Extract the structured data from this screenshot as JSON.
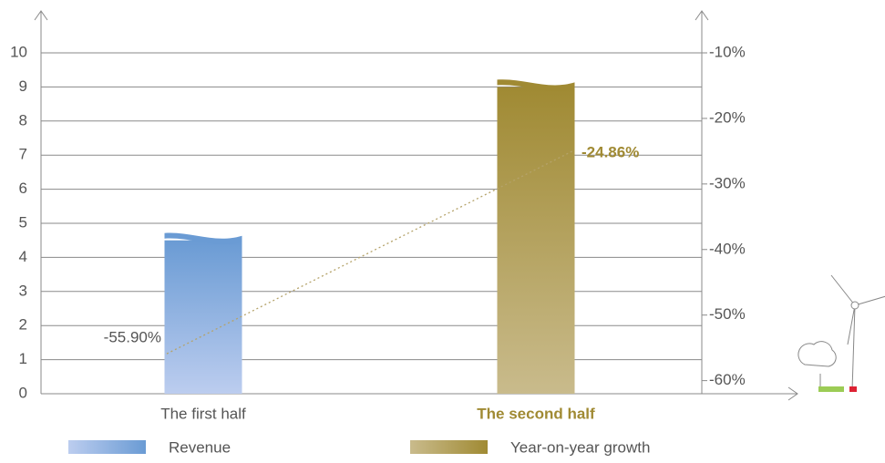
{
  "chart_data": {
    "type": "bar",
    "categories": [
      "The first half",
      "The second half"
    ],
    "series": [
      {
        "name": "Revenue",
        "type": "bar",
        "color": "#6a9bd4",
        "values": [
          4.5,
          9.0
        ]
      },
      {
        "name": "Year-on-year growth",
        "type": "line",
        "axis": "y2",
        "color": "#a08a33",
        "values": [
          -55.9,
          -24.86
        ],
        "value_labels": [
          "-55.90%",
          "-24.86%"
        ]
      }
    ],
    "ylim": [
      0,
      10
    ],
    "yticks": [
      0,
      1,
      2,
      3,
      4,
      5,
      6,
      7,
      8,
      9,
      10
    ],
    "y2lim": [
      -62,
      -10
    ],
    "y2ticks": [
      {
        "value": -10,
        "label": "-10%"
      },
      {
        "value": -20,
        "label": "-20%"
      },
      {
        "value": -30,
        "label": "-30%"
      },
      {
        "value": -40,
        "label": "-40%"
      },
      {
        "value": -50,
        "label": "-50%"
      },
      {
        "value": -60,
        "label": "-60%"
      }
    ],
    "grid": true
  }
}
